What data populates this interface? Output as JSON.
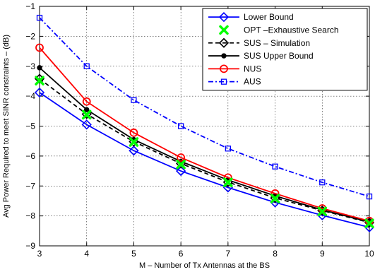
{
  "chart_data": {
    "type": "line",
    "title": "",
    "xlabel": "M – Number of Tx Antennas at the BS",
    "ylabel": "Avg Power Required to meet SINR constraints – (dB)",
    "xlim": [
      3,
      10
    ],
    "ylim": [
      -9,
      -1
    ],
    "x": [
      3,
      4,
      5,
      6,
      7,
      8,
      9,
      10
    ],
    "xticks": [
      "3",
      "4",
      "5",
      "6",
      "7",
      "8",
      "9",
      "10"
    ],
    "yticks": [
      "−9",
      "−8",
      "−7",
      "−6",
      "−5",
      "−4",
      "−3",
      "−2",
      "−1"
    ],
    "grid": true,
    "legend_position": "top-right",
    "series": [
      {
        "name": "Lower Bound",
        "color": "#0000ff",
        "line": "solid",
        "marker": "diamond",
        "values": [
          -3.88,
          -4.95,
          -5.82,
          -6.5,
          -7.05,
          -7.55,
          -7.98,
          -8.38
        ]
      },
      {
        "name": "OPT –Exhaustive Search",
        "color": "#00ff00",
        "line": "none",
        "marker": "x-bold",
        "values": [
          -3.48,
          -4.62,
          -5.53,
          -6.28,
          -6.88,
          -7.42,
          -7.85,
          -8.25
        ]
      },
      {
        "name": "SUS – Simulation",
        "color": "#000000",
        "line": "dashed",
        "marker": "diamond-open",
        "values": [
          -3.42,
          -4.6,
          -5.52,
          -6.25,
          -6.87,
          -7.4,
          -7.82,
          -8.22
        ]
      },
      {
        "name": "SUS Upper Bound",
        "color": "#000000",
        "line": "solid",
        "marker": "dot",
        "values": [
          -3.05,
          -4.45,
          -5.45,
          -6.18,
          -6.8,
          -7.33,
          -7.8,
          -8.2
        ]
      },
      {
        "name": "NUS",
        "color": "#ff0000",
        "line": "solid",
        "marker": "circle",
        "values": [
          -2.38,
          -4.18,
          -5.22,
          -6.05,
          -6.72,
          -7.25,
          -7.75,
          -8.17
        ]
      },
      {
        "name": "AUS",
        "color": "#0000ff",
        "line": "dashdot",
        "marker": "square",
        "values": [
          -1.38,
          -3.0,
          -4.13,
          -5.0,
          -5.75,
          -6.35,
          -6.88,
          -7.35
        ]
      }
    ]
  }
}
